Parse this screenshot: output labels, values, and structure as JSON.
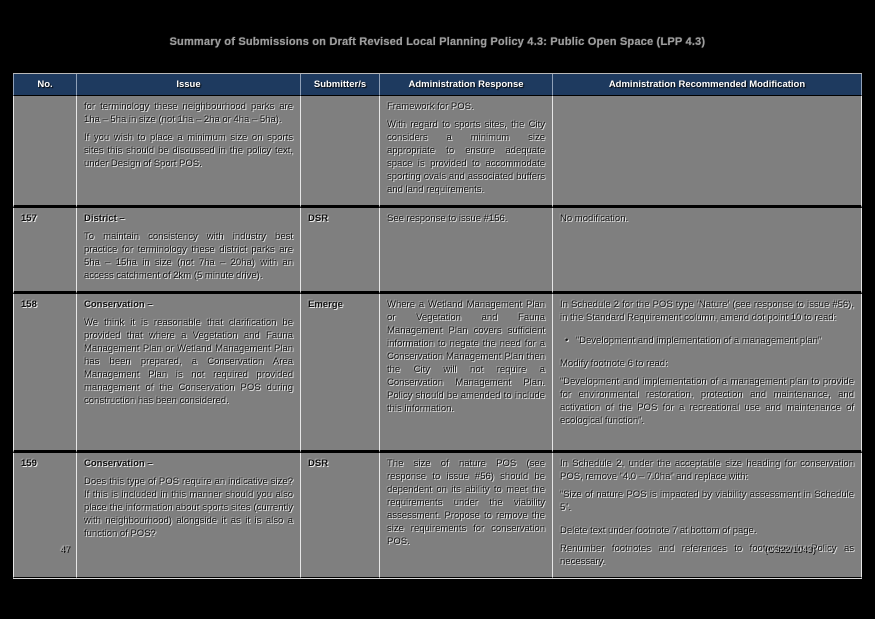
{
  "title": "Summary of Submissions on Draft Revised Local Planning Policy 4.3: Public Open Space (LPP 4.3)",
  "table": {
    "headers": [
      "No.",
      "Issue",
      "Submitter/s",
      "Administration Response",
      "Administration Recommended Modification"
    ],
    "rows": [
      {
        "no": "",
        "issue": [
          {
            "text": "for terminology these neighbourhood parks are 1ha – 5ha in size (not 1ha – 2ha or 4ha – 5ha)."
          },
          {
            "text": "If you wish to place a minimum size on sports sites this should be discussed in the policy text, under Design of Sport POS."
          }
        ],
        "submitter": "",
        "response": [
          {
            "text": "Framework for POS."
          },
          {
            "text": "With regard to sports sites, the City considers a minimum size appropriate to ensure adequate space is provided to accommodate sporting ovals and associated buffers and land requirements."
          }
        ],
        "modification": []
      },
      {
        "no": "157",
        "issue": [
          {
            "text": "District –",
            "bold": true
          },
          {
            "text": "To maintain consistency with industry best practice for terminology these district parks are 5ha – 15ha in size (not 7ha – 20ha) with an access catchment of 2km (5 minute drive)."
          }
        ],
        "submitter": "DSR",
        "response": [
          {
            "text": "See response to issue #156."
          }
        ],
        "modification": [
          {
            "text": "No modification."
          }
        ]
      },
      {
        "no": "158",
        "issue": [
          {
            "text": "Conservation –",
            "bold": true
          },
          {
            "text": "We think it is reasonable that clarification be provided that where a Vegetation and Fauna Management Plan or Wetland Management Plan has been prepared, a Conservation Area Management Plan is not required provided management of the Conservation POS during construction has been considered."
          }
        ],
        "submitter": "Emerge",
        "response": [
          {
            "text": "Where a Wetland Management Plan or Vegetation and Fauna Management Plan covers sufficient information to negate the need for a Conservation Management Plan then the City will not require a Conservation Management Plan. Policy should be amended to include this information."
          }
        ],
        "modification": [
          {
            "text": "In Schedule 2 for the POS type ‘Nature’ (see response to issue #56), in the Standard Requirement column, amend dot point 10 to read:"
          },
          {
            "text": "“Development and implementation of a management plan”",
            "bullet": true,
            "gap": true
          },
          {
            "text": "Modify footnote 6 to read:",
            "gap": true
          },
          {
            "text": "“Development and implementation of a management plan to provide for environmental restoration, protection and maintenance, and activation of the POS for a recreational use and maintenance of ecological function”."
          }
        ]
      },
      {
        "no": "159",
        "issue": [
          {
            "text": "Conservation –",
            "bold": true
          },
          {
            "text": "Does this type of POS require an indicative size? If this is included in this manner should you also place the information about sports sites (currently with neighbourhood) alongside it as it is also a function of POS?"
          }
        ],
        "submitter": "DSR",
        "response": [
          {
            "text": "The size of nature POS (see response to issue #56) should be dependent on its ability to meet the requirements under the viability assessment. Propose to remove the size requirements for conservation POS."
          }
        ],
        "modification": [
          {
            "text": "In Schedule 2, under the acceptable size heading for conservation POS, remove “4.0 – 7.0ha” and replace with:"
          },
          {
            "text": "“Size of nature POS is impacted by viability assessment in Schedule 5”."
          },
          {
            "text": "Delete text under footnote 7 at bottom of page.",
            "gap": true
          },
          {
            "text": "Renumber footnotes and references to footnotes in Policy as necessary."
          }
        ]
      }
    ]
  },
  "footer": {
    "page_number": "47",
    "doc_ref": "(CS22/1043)"
  },
  "colors": {
    "header_bg": "#1e3a5f",
    "cell_bg": "#7f7f7f",
    "page_bg": "#000000"
  }
}
